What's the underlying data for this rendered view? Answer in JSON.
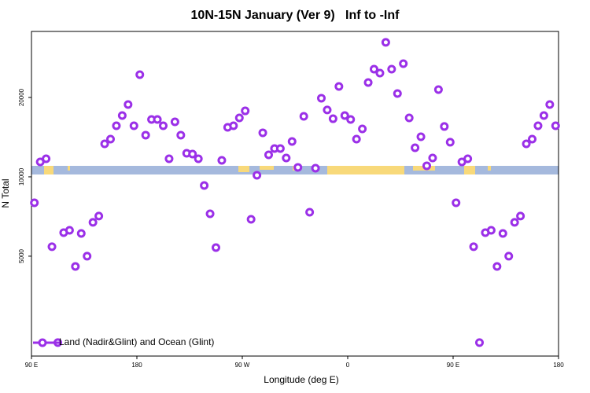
{
  "chart_data": {
    "type": "scatter",
    "title": "10N-15N January (Ver 9)   Inf to -Inf",
    "x_label": "Longitude (deg E)",
    "y_label": "N Total",
    "log_y": true,
    "xlim": [
      90,
      540
    ],
    "ylim": [
      2090,
      35600
    ],
    "xticks": [
      {
        "value": 90,
        "label": "90 E"
      },
      {
        "value": 180,
        "label": "180"
      },
      {
        "value": 270,
        "label": "90 W"
      },
      {
        "value": 360,
        "label": "0"
      },
      {
        "value": 450,
        "label": "90 E"
      },
      {
        "value": 540,
        "label": "180"
      }
    ],
    "yticks": [
      5000,
      10000,
      20000
    ],
    "legend": "bottom-left",
    "series": [
      {
        "name": "Land (Nadir&Glint) and Ocean (Glint)",
        "color": "#9b30e8",
        "x": [
          92.5,
          97.5,
          102.5,
          107.5,
          112.5,
          117.5,
          122.5,
          127.5,
          132.5,
          137.5,
          142.5,
          147.5,
          152.5,
          157.5,
          162.5,
          167.5,
          172.5,
          177.5,
          182.5,
          187.5,
          192.5,
          197.5,
          202.5,
          207.5,
          212.5,
          217.5,
          222.5,
          227.5,
          232.5,
          237.5,
          242.5,
          247.5,
          252.5,
          257.5,
          262.5,
          267.5,
          272.5,
          277.5,
          282.5,
          287.5,
          292.5,
          297.5,
          302.5,
          307.5,
          312.5,
          317.5,
          322.5,
          327.5,
          332.5,
          337.5,
          342.5,
          347.5,
          352.5,
          357.5,
          362.5,
          367.5,
          372.5,
          377.5,
          382.5,
          387.5,
          392.5,
          397.5,
          402.5,
          407.5,
          412.5,
          417.5,
          422.5,
          427.5,
          432.5,
          437.5,
          442.5,
          447.5,
          452.5,
          457.5,
          462.5,
          467.5,
          472.5,
          477.5,
          482.5,
          487.5,
          492.5,
          497.5,
          502.5,
          507.5,
          512.5,
          517.5,
          522.5,
          527.5,
          532.5,
          537.5
        ],
        "values": [
          7970,
          11390,
          11710,
          5430,
          2350,
          6140,
          6270,
          4570,
          6100,
          5000,
          6720,
          7100,
          13340,
          13900,
          15620,
          17080,
          18800,
          15620,
          24410,
          14390,
          16500,
          16500,
          15620,
          11710,
          16170,
          14390,
          12280,
          12200,
          11710,
          9270,
          7240,
          5390,
          11550,
          15410,
          15620,
          16730,
          17790,
          6900,
          10140,
          14690,
          12120,
          12800,
          12800,
          11790,
          13620,
          10860,
          16960,
          7340,
          10780,
          19870,
          17930,
          16610,
          22020,
          17080,
          16500,
          13900,
          15200,
          22790,
          25600,
          24750,
          32360,
          25600,
          20700,
          26860,
          16730,
          12890,
          14190,
          11010,
          11790,
          21420,
          15520,
          13530,
          7970,
          11390,
          11710,
          5430,
          2350,
          6140,
          6270,
          4570,
          6100,
          5000,
          6720,
          7100,
          13340,
          13900,
          15620,
          17080,
          18800,
          15620
        ]
      }
    ]
  }
}
